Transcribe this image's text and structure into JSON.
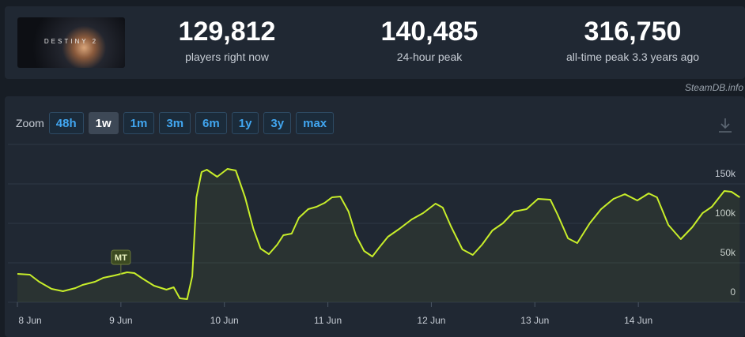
{
  "header": {
    "game_logo": "DESTINY 2",
    "stats": [
      {
        "value": "129,812",
        "label": "players right now"
      },
      {
        "value": "140,485",
        "label": "24-hour peak"
      },
      {
        "value": "316,750",
        "label": "all-time peak 3.3 years ago"
      }
    ],
    "source": "SteamDB.info"
  },
  "zoom": {
    "label": "Zoom",
    "buttons": [
      "48h",
      "1w",
      "1m",
      "3m",
      "6m",
      "1y",
      "3y",
      "max"
    ],
    "active": 1
  },
  "chart_data": {
    "type": "line",
    "x": [
      0,
      0.12,
      0.21,
      0.33,
      0.44,
      0.56,
      0.63,
      0.75,
      0.83,
      0.94,
      1.06,
      1.13,
      1.21,
      1.32,
      1.44,
      1.51,
      1.57,
      1.64,
      1.69,
      1.73,
      1.78,
      1.83,
      1.93,
      2.03,
      2.11,
      2.2,
      2.28,
      2.35,
      2.43,
      2.51,
      2.57,
      2.65,
      2.72,
      2.81,
      2.89,
      2.97,
      3.04,
      3.12,
      3.2,
      3.27,
      3.35,
      3.43,
      3.5,
      3.58,
      3.69,
      3.81,
      3.92,
      4.04,
      4.11,
      4.19,
      4.3,
      4.4,
      4.49,
      4.59,
      4.69,
      4.8,
      4.92,
      5.03,
      5.15,
      5.22,
      5.32,
      5.41,
      5.53,
      5.64,
      5.76,
      5.87,
      5.99,
      6.1,
      6.18,
      6.29,
      6.41,
      6.52,
      6.62,
      6.71,
      6.83,
      6.9,
      6.98
    ],
    "series": [
      {
        "color": "#c8ee2a",
        "values": [
          36000,
          35000,
          26000,
          17000,
          14000,
          18000,
          22000,
          26000,
          31000,
          34000,
          38000,
          37000,
          30000,
          21000,
          16000,
          19000,
          5000,
          4000,
          33000,
          133000,
          165000,
          168000,
          159000,
          169000,
          167000,
          133000,
          93000,
          68000,
          61000,
          73000,
          85000,
          87000,
          107000,
          118000,
          121000,
          126000,
          133000,
          134000,
          115000,
          85000,
          65000,
          58000,
          70000,
          83000,
          93000,
          105000,
          113000,
          125000,
          120000,
          96000,
          67000,
          60000,
          73000,
          91000,
          100000,
          115000,
          118000,
          131000,
          130000,
          111000,
          81000,
          75000,
          100000,
          118000,
          131000,
          137000,
          129000,
          138000,
          133000,
          98000,
          80000,
          95000,
          113000,
          121000,
          141000,
          140000,
          133000
        ]
      }
    ],
    "xlim": [
      0,
      7
    ],
    "xticks": [
      {
        "value": 0,
        "label": "8 Jun"
      },
      {
        "value": 1,
        "label": "9 Jun"
      },
      {
        "value": 2,
        "label": "10 Jun"
      },
      {
        "value": 3,
        "label": "11 Jun"
      },
      {
        "value": 4,
        "label": "12 Jun"
      },
      {
        "value": 5,
        "label": "13 Jun"
      },
      {
        "value": 6,
        "label": "14 Jun"
      }
    ],
    "ylim": [
      0,
      200000
    ],
    "yticks": [
      0,
      {
        "value": 50000,
        "label": "50k"
      },
      {
        "value": 100000,
        "label": "100k"
      },
      {
        "value": 150000,
        "label": "150k"
      }
    ],
    "grid": true,
    "annotations": [
      {
        "x": 1,
        "text": "MT"
      }
    ]
  }
}
